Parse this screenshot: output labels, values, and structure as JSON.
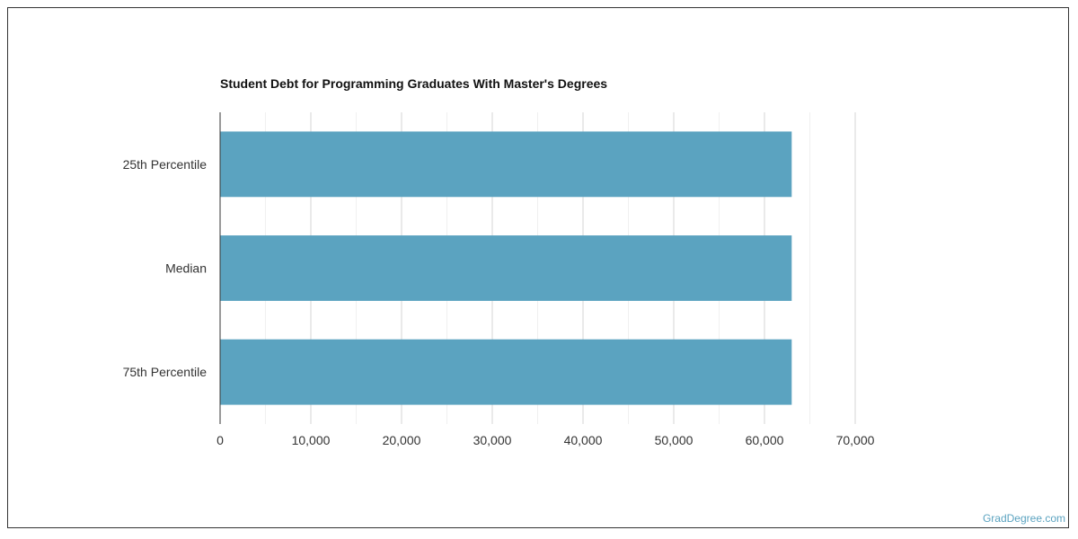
{
  "chart_data": {
    "type": "bar",
    "orientation": "horizontal",
    "title": "Student Debt for Programming Graduates With Master's Degrees",
    "categories": [
      "25th Percentile",
      "Median",
      "75th Percentile"
    ],
    "values": [
      63000,
      63000,
      63000
    ],
    "xlabel": "",
    "ylabel": "",
    "xlim": [
      0,
      70000
    ],
    "x_ticks": [
      0,
      10000,
      20000,
      30000,
      40000,
      50000,
      60000,
      70000
    ],
    "x_tick_labels": [
      "0",
      "10,000",
      "20,000",
      "30,000",
      "40,000",
      "50,000",
      "60,000",
      "70,000"
    ],
    "grid": "vertical",
    "bar_color": "#5ba3c0"
  },
  "watermark": "GradDegree.com"
}
